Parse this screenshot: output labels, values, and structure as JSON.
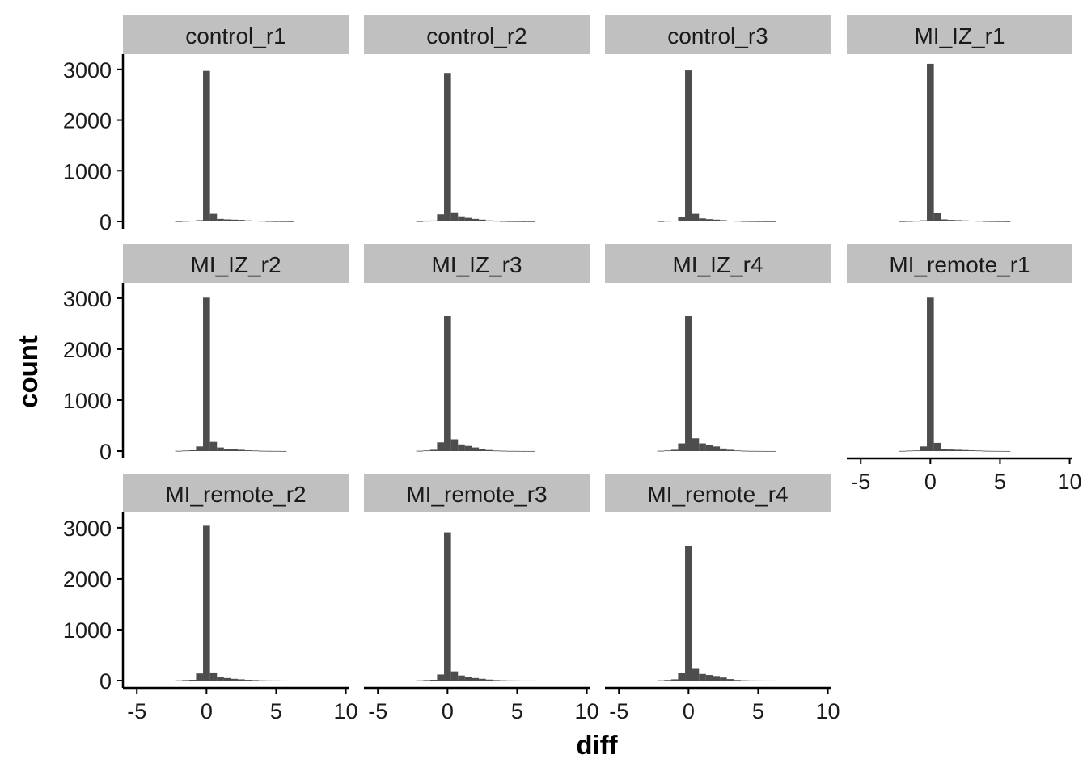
{
  "chart_data": {
    "type": "bar",
    "layout": "faceted-histogram",
    "xlabel": "diff",
    "ylabel": "count",
    "xlim": [
      -6,
      10.2
    ],
    "ylim": [
      0,
      3300
    ],
    "x_ticks": [
      -5,
      0,
      5,
      10
    ],
    "x_tick_labels": [
      "-5",
      "0",
      "5",
      "10"
    ],
    "y_ticks": [
      0,
      1000,
      2000,
      3000
    ],
    "y_tick_labels": [
      "0",
      "1000",
      "2000",
      "3000"
    ],
    "bin_width": 0.5,
    "bin_centers": [
      -2.0,
      -1.5,
      -1.0,
      -0.5,
      0.0,
      0.5,
      1.0,
      1.5,
      2.0,
      2.5,
      3.0,
      3.5,
      4.0,
      4.5,
      5.0,
      5.5,
      6.0
    ],
    "bar_color": "#4d4d4d",
    "strip_color": "#c0c0c0",
    "grid": false,
    "facets": [
      {
        "label": "control_r1",
        "values": [
          3,
          8,
          12,
          25,
          2970,
          150,
          50,
          40,
          35,
          30,
          20,
          15,
          10,
          5,
          3,
          2,
          1
        ]
      },
      {
        "label": "control_r2",
        "values": [
          4,
          10,
          18,
          140,
          2930,
          180,
          100,
          70,
          50,
          35,
          20,
          10,
          6,
          3,
          2,
          1,
          1
        ]
      },
      {
        "label": "control_r3",
        "values": [
          4,
          10,
          16,
          80,
          2980,
          150,
          60,
          45,
          35,
          25,
          15,
          10,
          5,
          3,
          2,
          1,
          1
        ]
      },
      {
        "label": "MI_IZ_r1",
        "values": [
          3,
          6,
          10,
          22,
          3110,
          160,
          40,
          30,
          25,
          20,
          15,
          10,
          5,
          3,
          2,
          1,
          0
        ]
      },
      {
        "label": "MI_IZ_r2",
        "values": [
          4,
          10,
          16,
          90,
          3010,
          180,
          70,
          45,
          35,
          25,
          15,
          10,
          5,
          3,
          2,
          1,
          0
        ]
      },
      {
        "label": "MI_IZ_r3",
        "values": [
          5,
          12,
          25,
          170,
          2650,
          230,
          130,
          100,
          70,
          40,
          20,
          10,
          6,
          3,
          2,
          1,
          1
        ]
      },
      {
        "label": "MI_IZ_r4",
        "values": [
          5,
          12,
          25,
          150,
          2650,
          250,
          150,
          120,
          90,
          50,
          25,
          12,
          6,
          3,
          2,
          1,
          1
        ]
      },
      {
        "label": "MI_remote_r1",
        "values": [
          3,
          8,
          12,
          90,
          3010,
          160,
          40,
          30,
          25,
          20,
          15,
          10,
          5,
          3,
          2,
          1,
          0
        ]
      },
      {
        "label": "MI_remote_r2",
        "values": [
          4,
          10,
          16,
          140,
          3040,
          160,
          70,
          50,
          35,
          25,
          15,
          10,
          5,
          3,
          2,
          1,
          0
        ]
      },
      {
        "label": "MI_remote_r3",
        "values": [
          4,
          10,
          16,
          120,
          2910,
          180,
          100,
          70,
          50,
          35,
          20,
          10,
          6,
          3,
          2,
          1,
          1
        ]
      },
      {
        "label": "MI_remote_r4",
        "values": [
          5,
          12,
          25,
          150,
          2650,
          230,
          130,
          110,
          90,
          60,
          30,
          12,
          6,
          3,
          2,
          1,
          1
        ]
      }
    ],
    "x_axis_panels": [
      "MI_remote_r1",
      "MI_remote_r2",
      "MI_remote_r3",
      "MI_remote_r4"
    ],
    "y_axis_panels": [
      "control_r1",
      "MI_IZ_r2",
      "MI_remote_r2"
    ]
  }
}
